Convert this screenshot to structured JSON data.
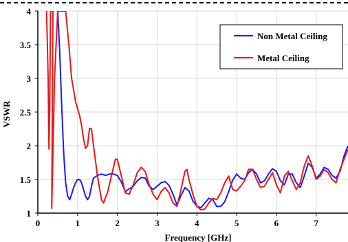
{
  "chart_data": {
    "type": "line",
    "title": "",
    "xlabel": "Frequency [GHz]",
    "ylabel": "VSWR",
    "xlim": [
      0,
      7.8
    ],
    "ylim": [
      1,
      4
    ],
    "x_ticks": [
      0,
      1,
      2,
      3,
      4,
      5,
      6,
      7
    ],
    "y_ticks": [
      1,
      1.5,
      2,
      2.5,
      3,
      3.5,
      4
    ],
    "x_tick_labels": [
      "0",
      "1",
      "2",
      "3",
      "4",
      "5",
      "6",
      "7"
    ],
    "y_tick_labels": [
      "1",
      "1.5",
      "2",
      "2.5",
      "3",
      "3.5",
      "4"
    ],
    "grid": true,
    "legend_position": "top-right",
    "series": [
      {
        "name": "Non Metal Ceiling",
        "color": "#1a1aff",
        "points": [
          [
            0.5,
            4.0
          ],
          [
            0.55,
            3.4
          ],
          [
            0.6,
            2.6
          ],
          [
            0.65,
            1.9
          ],
          [
            0.7,
            1.45
          ],
          [
            0.75,
            1.25
          ],
          [
            0.8,
            1.2
          ],
          [
            0.85,
            1.28
          ],
          [
            0.9,
            1.38
          ],
          [
            0.95,
            1.45
          ],
          [
            1.0,
            1.5
          ],
          [
            1.05,
            1.5
          ],
          [
            1.1,
            1.45
          ],
          [
            1.15,
            1.35
          ],
          [
            1.2,
            1.25
          ],
          [
            1.25,
            1.2
          ],
          [
            1.3,
            1.25
          ],
          [
            1.35,
            1.4
          ],
          [
            1.4,
            1.52
          ],
          [
            1.5,
            1.56
          ],
          [
            1.6,
            1.58
          ],
          [
            1.7,
            1.56
          ],
          [
            1.8,
            1.58
          ],
          [
            1.9,
            1.58
          ],
          [
            2.0,
            1.56
          ],
          [
            2.1,
            1.46
          ],
          [
            2.2,
            1.32
          ],
          [
            2.3,
            1.36
          ],
          [
            2.4,
            1.4
          ],
          [
            2.5,
            1.48
          ],
          [
            2.6,
            1.53
          ],
          [
            2.7,
            1.52
          ],
          [
            2.8,
            1.4
          ],
          [
            2.9,
            1.35
          ],
          [
            3.0,
            1.4
          ],
          [
            3.1,
            1.45
          ],
          [
            3.2,
            1.47
          ],
          [
            3.3,
            1.41
          ],
          [
            3.4,
            1.28
          ],
          [
            3.5,
            1.12
          ],
          [
            3.6,
            1.26
          ],
          [
            3.7,
            1.38
          ],
          [
            3.8,
            1.33
          ],
          [
            3.9,
            1.18
          ],
          [
            4.0,
            1.1
          ],
          [
            4.1,
            1.08
          ],
          [
            4.2,
            1.15
          ],
          [
            4.3,
            1.22
          ],
          [
            4.4,
            1.2
          ],
          [
            4.5,
            1.1
          ],
          [
            4.6,
            1.1
          ],
          [
            4.7,
            1.17
          ],
          [
            4.8,
            1.32
          ],
          [
            4.9,
            1.49
          ],
          [
            5.0,
            1.58
          ],
          [
            5.1,
            1.52
          ],
          [
            5.2,
            1.5
          ],
          [
            5.3,
            1.6
          ],
          [
            5.4,
            1.65
          ],
          [
            5.5,
            1.58
          ],
          [
            5.6,
            1.45
          ],
          [
            5.7,
            1.48
          ],
          [
            5.8,
            1.58
          ],
          [
            5.9,
            1.66
          ],
          [
            6.0,
            1.62
          ],
          [
            6.1,
            1.48
          ],
          [
            6.2,
            1.42
          ],
          [
            6.3,
            1.58
          ],
          [
            6.4,
            1.58
          ],
          [
            6.5,
            1.45
          ],
          [
            6.6,
            1.38
          ],
          [
            6.7,
            1.55
          ],
          [
            6.8,
            1.74
          ],
          [
            6.9,
            1.68
          ],
          [
            7.0,
            1.52
          ],
          [
            7.1,
            1.58
          ],
          [
            7.2,
            1.68
          ],
          [
            7.3,
            1.65
          ],
          [
            7.4,
            1.56
          ],
          [
            7.5,
            1.52
          ],
          [
            7.6,
            1.62
          ],
          [
            7.7,
            1.85
          ],
          [
            7.8,
            2.0
          ]
        ]
      },
      {
        "name": "Metal Ceiling",
        "color": "#e81818",
        "points": [
          [
            0.22,
            4.0
          ],
          [
            0.26,
            3.0
          ],
          [
            0.28,
            1.95
          ],
          [
            0.3,
            2.6
          ],
          [
            0.32,
            4.0
          ],
          [
            0.38,
            4.0
          ],
          [
            0.35,
            1.07
          ],
          [
            0.42,
            3.0
          ],
          [
            0.5,
            4.0
          ],
          [
            0.58,
            4.0
          ],
          [
            0.7,
            4.0
          ],
          [
            0.78,
            3.5
          ],
          [
            0.85,
            3.0
          ],
          [
            0.95,
            2.65
          ],
          [
            1.05,
            2.45
          ],
          [
            1.1,
            2.3
          ],
          [
            1.15,
            2.1
          ],
          [
            1.2,
            1.96
          ],
          [
            1.25,
            2.0
          ],
          [
            1.3,
            2.26
          ],
          [
            1.35,
            2.25
          ],
          [
            1.4,
            2.0
          ],
          [
            1.5,
            1.55
          ],
          [
            1.6,
            1.2
          ],
          [
            1.65,
            1.15
          ],
          [
            1.75,
            1.3
          ],
          [
            1.85,
            1.55
          ],
          [
            1.95,
            1.8
          ],
          [
            2.0,
            1.8
          ],
          [
            2.1,
            1.55
          ],
          [
            2.2,
            1.3
          ],
          [
            2.3,
            1.28
          ],
          [
            2.4,
            1.42
          ],
          [
            2.5,
            1.6
          ],
          [
            2.6,
            1.68
          ],
          [
            2.7,
            1.62
          ],
          [
            2.8,
            1.42
          ],
          [
            2.9,
            1.28
          ],
          [
            3.0,
            1.2
          ],
          [
            3.1,
            1.32
          ],
          [
            3.2,
            1.38
          ],
          [
            3.3,
            1.3
          ],
          [
            3.4,
            1.15
          ],
          [
            3.5,
            1.1
          ],
          [
            3.6,
            1.35
          ],
          [
            3.7,
            1.62
          ],
          [
            3.75,
            1.65
          ],
          [
            3.8,
            1.5
          ],
          [
            3.9,
            1.28
          ],
          [
            4.0,
            1.1
          ],
          [
            4.1,
            1.05
          ],
          [
            4.2,
            1.06
          ],
          [
            4.3,
            1.15
          ],
          [
            4.4,
            1.22
          ],
          [
            4.5,
            1.2
          ],
          [
            4.6,
            1.3
          ],
          [
            4.7,
            1.45
          ],
          [
            4.8,
            1.55
          ],
          [
            4.9,
            1.35
          ],
          [
            5.0,
            1.33
          ],
          [
            5.1,
            1.4
          ],
          [
            5.2,
            1.48
          ],
          [
            5.3,
            1.65
          ],
          [
            5.4,
            1.65
          ],
          [
            5.5,
            1.5
          ],
          [
            5.6,
            1.38
          ],
          [
            5.7,
            1.4
          ],
          [
            5.8,
            1.5
          ],
          [
            5.9,
            1.6
          ],
          [
            6.0,
            1.42
          ],
          [
            6.1,
            1.3
          ],
          [
            6.2,
            1.55
          ],
          [
            6.3,
            1.62
          ],
          [
            6.4,
            1.48
          ],
          [
            6.5,
            1.35
          ],
          [
            6.6,
            1.45
          ],
          [
            6.7,
            1.7
          ],
          [
            6.8,
            1.85
          ],
          [
            6.9,
            1.7
          ],
          [
            7.0,
            1.5
          ],
          [
            7.1,
            1.55
          ],
          [
            7.2,
            1.65
          ],
          [
            7.3,
            1.6
          ],
          [
            7.4,
            1.5
          ],
          [
            7.5,
            1.45
          ],
          [
            7.6,
            1.65
          ],
          [
            7.7,
            1.8
          ],
          [
            7.8,
            1.95
          ]
        ]
      }
    ]
  }
}
